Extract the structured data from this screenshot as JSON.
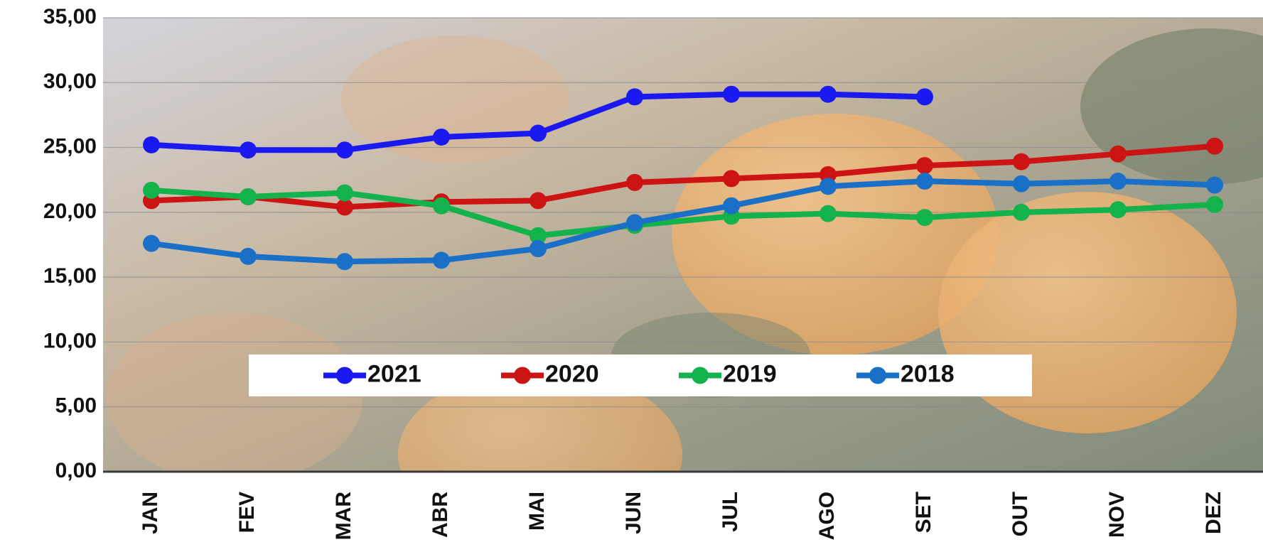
{
  "chart_data": {
    "type": "line",
    "categories": [
      "JAN",
      "FEV",
      "MAR",
      "ABR",
      "MAI",
      "JUN",
      "JUL",
      "AGO",
      "SET",
      "OUT",
      "NOV",
      "DEZ"
    ],
    "series": [
      {
        "name": "2021",
        "color": "#1a1af0",
        "values": [
          25.2,
          24.8,
          24.8,
          25.8,
          26.1,
          28.9,
          29.1,
          29.1,
          28.9,
          null,
          null,
          null
        ]
      },
      {
        "name": "2020",
        "color": "#cc1414",
        "values": [
          20.9,
          21.2,
          20.4,
          20.8,
          20.9,
          22.3,
          22.6,
          22.9,
          23.6,
          23.9,
          24.5,
          25.1
        ]
      },
      {
        "name": "2019",
        "color": "#14b24c",
        "values": [
          21.7,
          21.2,
          21.5,
          20.5,
          18.2,
          19.0,
          19.7,
          19.9,
          19.6,
          20.0,
          20.2,
          20.6
        ]
      },
      {
        "name": "2018",
        "color": "#1a70c6",
        "values": [
          17.6,
          16.6,
          16.2,
          16.3,
          17.2,
          19.2,
          20.5,
          22.0,
          22.4,
          22.2,
          22.4,
          22.1
        ]
      }
    ],
    "ylim": [
      0,
      35
    ],
    "yticks": [
      {
        "value": 0,
        "label": "0,00"
      },
      {
        "value": 5,
        "label": "5,00"
      },
      {
        "value": 10,
        "label": "10,00"
      },
      {
        "value": 15,
        "label": "15,00"
      },
      {
        "value": 20,
        "label": "20,00"
      },
      {
        "value": 25,
        "label": "25,00"
      },
      {
        "value": 30,
        "label": "30,00"
      },
      {
        "value": 35,
        "label": "35,00"
      }
    ],
    "grid": true,
    "legend_position": "lower center"
  }
}
